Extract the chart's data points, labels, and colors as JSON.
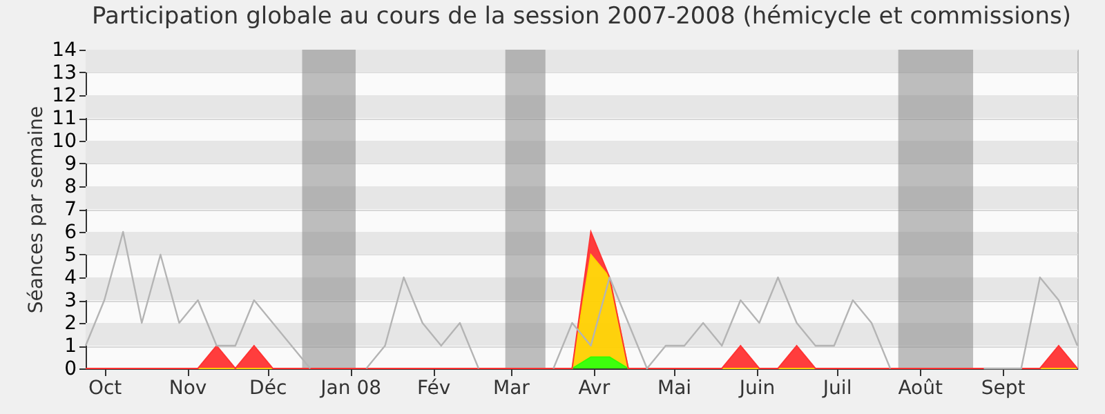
{
  "chart_data": {
    "type": "area",
    "title": "Participation globale au cours de la session 2007-2008 (hémicycle et commissions)",
    "ylabel": "Séances par semaine",
    "x": [
      "2007-09-24",
      "2007-10-01",
      "2007-10-08",
      "2007-10-15",
      "2007-10-22",
      "2007-10-29",
      "2007-11-05",
      "2007-11-12",
      "2007-11-19",
      "2007-11-26",
      "2007-12-03",
      "2007-12-10",
      "2007-12-17",
      "2007-12-24",
      "2007-12-31",
      "2008-01-07",
      "2008-01-14",
      "2008-01-21",
      "2008-01-28",
      "2008-02-04",
      "2008-02-11",
      "2008-02-18",
      "2008-02-25",
      "2008-03-03",
      "2008-03-10",
      "2008-03-17",
      "2008-03-24",
      "2008-03-31",
      "2008-04-07",
      "2008-04-14",
      "2008-04-21",
      "2008-04-28",
      "2008-05-05",
      "2008-05-12",
      "2008-05-19",
      "2008-05-26",
      "2008-06-02",
      "2008-06-09",
      "2008-06-16",
      "2008-06-23",
      "2008-06-30",
      "2008-07-07",
      "2008-07-14",
      "2008-07-21",
      "2008-07-28",
      "2008-08-04",
      "2008-08-11",
      "2008-08-18",
      "2008-08-25",
      "2008-09-01",
      "2008-09-08",
      "2008-09-15",
      "2008-09-22",
      "2008-09-29"
    ],
    "xlim": [
      "2007-09-24",
      "2008-09-29"
    ],
    "xticks": [
      {
        "value": "2007-10-01",
        "label": "Oct"
      },
      {
        "value": "2007-11-01",
        "label": "Nov"
      },
      {
        "value": "2007-12-01",
        "label": "Déc"
      },
      {
        "value": "2008-01-01",
        "label": "Jan 08"
      },
      {
        "value": "2008-02-01",
        "label": "Fév"
      },
      {
        "value": "2008-03-01",
        "label": "Mar"
      },
      {
        "value": "2008-04-01",
        "label": "Avr"
      },
      {
        "value": "2008-05-01",
        "label": "Mai"
      },
      {
        "value": "2008-06-01",
        "label": "Juin"
      },
      {
        "value": "2008-07-01",
        "label": "Juil"
      },
      {
        "value": "2008-08-01",
        "label": "Août"
      },
      {
        "value": "2008-09-01",
        "label": "Sept"
      }
    ],
    "ylim": [
      0,
      14
    ],
    "yticks": [
      0,
      1,
      2,
      3,
      4,
      5,
      6,
      7,
      8,
      9,
      10,
      11,
      12,
      13,
      14
    ],
    "grid": "y",
    "stacked": true,
    "bands": [
      {
        "axis": "x",
        "from": "2007-12-14",
        "to": "2008-01-03",
        "color": "#808080"
      },
      {
        "axis": "x",
        "from": "2008-02-28",
        "to": "2008-03-14",
        "color": "#808080"
      },
      {
        "axis": "x",
        "from": "2008-07-24",
        "to": "2008-08-21",
        "color": "#808080"
      }
    ],
    "series": [
      {
        "color": "#33ff00",
        "values": [
          0,
          0,
          0,
          0,
          0,
          0,
          0,
          0,
          0,
          0,
          0,
          0,
          0,
          0,
          0,
          0,
          0,
          0,
          0,
          0,
          0,
          0,
          0,
          0,
          0,
          0,
          0,
          0.5,
          0.5,
          0,
          0,
          0,
          0,
          0,
          0,
          0,
          0,
          0,
          0,
          0,
          0,
          0,
          0,
          0,
          0,
          0,
          0,
          0,
          0,
          0,
          0,
          0,
          0,
          0
        ]
      },
      {
        "color": "#ffd000",
        "values": [
          0,
          0,
          0,
          0,
          0,
          0,
          0,
          0,
          0,
          0,
          0,
          0,
          0,
          0,
          0,
          0,
          0,
          0,
          0,
          0,
          0,
          0,
          0,
          0,
          0,
          0,
          0,
          4.5,
          3.5,
          0,
          0,
          0,
          0,
          0,
          0,
          0,
          0,
          0,
          0,
          0,
          0,
          0,
          0,
          0,
          0,
          0,
          0,
          0,
          0,
          0,
          0,
          0,
          0,
          0
        ]
      },
      {
        "color": "#ff3333",
        "values": [
          0,
          0,
          0,
          0,
          0,
          0,
          0,
          1,
          0,
          1,
          0,
          0,
          0,
          0,
          0,
          0,
          0,
          0,
          0,
          0,
          0,
          0,
          0,
          0,
          0,
          0,
          0,
          1,
          0,
          0,
          0,
          0,
          0,
          0,
          0,
          1,
          0,
          0,
          1,
          0,
          0,
          0,
          0,
          0,
          0,
          0,
          0,
          0,
          0,
          0,
          0,
          0,
          1,
          0
        ]
      },
      {
        "type": "line",
        "color": "#b4b4b4",
        "values": [
          1,
          3,
          6,
          2,
          5,
          2,
          3,
          1,
          1,
          3,
          2,
          1,
          0,
          null,
          null,
          0,
          1,
          4,
          2,
          1,
          2,
          0,
          null,
          null,
          null,
          0,
          2,
          1,
          4,
          2,
          0,
          1,
          1,
          2,
          1,
          3,
          2,
          4,
          2,
          1,
          1,
          3,
          2,
          0,
          null,
          null,
          null,
          null,
          0,
          0,
          0,
          4,
          3,
          1
        ]
      }
    ]
  }
}
